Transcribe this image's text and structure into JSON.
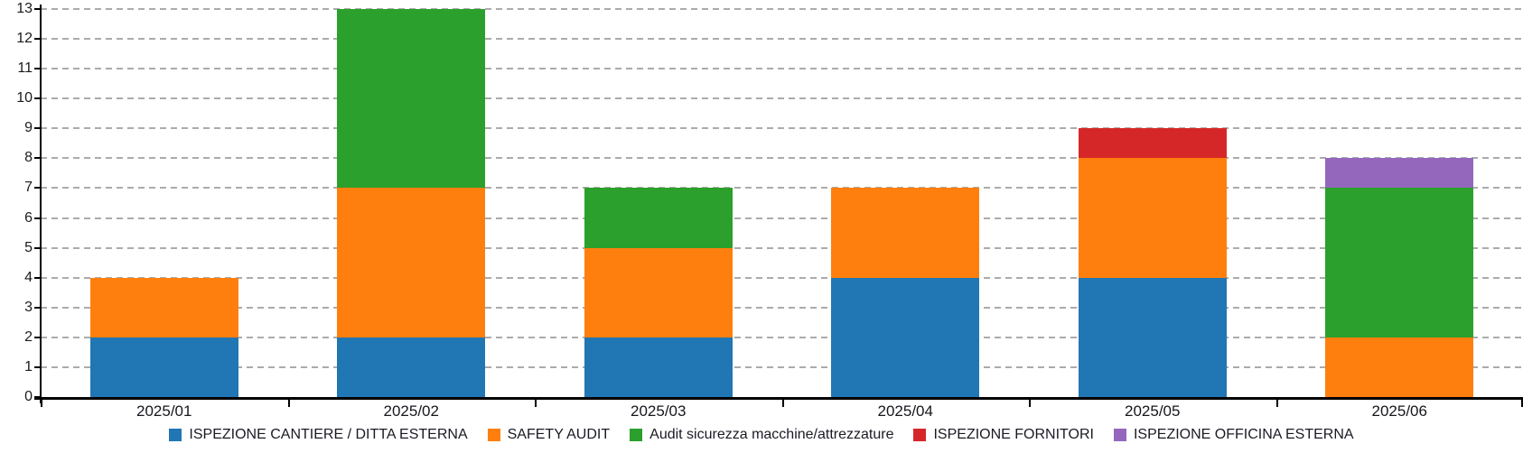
{
  "chart_data": {
    "type": "bar",
    "stacked": true,
    "title": "",
    "xlabel": "",
    "ylabel": "",
    "categories": [
      "2025/01",
      "2025/02",
      "2025/03",
      "2025/04",
      "2025/05",
      "2025/06"
    ],
    "series": [
      {
        "name": "ISPEZIONE CANTIERE / DITTA ESTERNA",
        "color": "#2176B4",
        "values": [
          2,
          2,
          2,
          4,
          4,
          0
        ]
      },
      {
        "name": "SAFETY AUDIT",
        "color": "#FF7F0E",
        "values": [
          2,
          5,
          3,
          3,
          4,
          2
        ]
      },
      {
        "name": "Audit sicurezza macchine/attrezzature",
        "color": "#2CA02C",
        "values": [
          0,
          6,
          2,
          0,
          0,
          5
        ]
      },
      {
        "name": "ISPEZIONE FORNITORI",
        "color": "#D62728",
        "values": [
          0,
          0,
          0,
          0,
          1,
          0
        ]
      },
      {
        "name": "ISPEZIONE OFFICINA ESTERNA",
        "color": "#9467BD",
        "values": [
          0,
          0,
          0,
          0,
          0,
          1
        ]
      }
    ],
    "totals": [
      4,
      13,
      7,
      7,
      9,
      8
    ],
    "ylim": [
      0,
      13
    ],
    "ytick_step": 1,
    "ytick_labels": [
      "0",
      "1",
      "2",
      "3",
      "4",
      "5",
      "6",
      "7",
      "8",
      "9",
      "10",
      "11",
      "12",
      "13"
    ],
    "grid": "horizontal-dashed",
    "grid_color": "#ABABAB",
    "axis_color": "#000000",
    "legend_position": "bottom",
    "bar_width_ratio": 0.6
  }
}
